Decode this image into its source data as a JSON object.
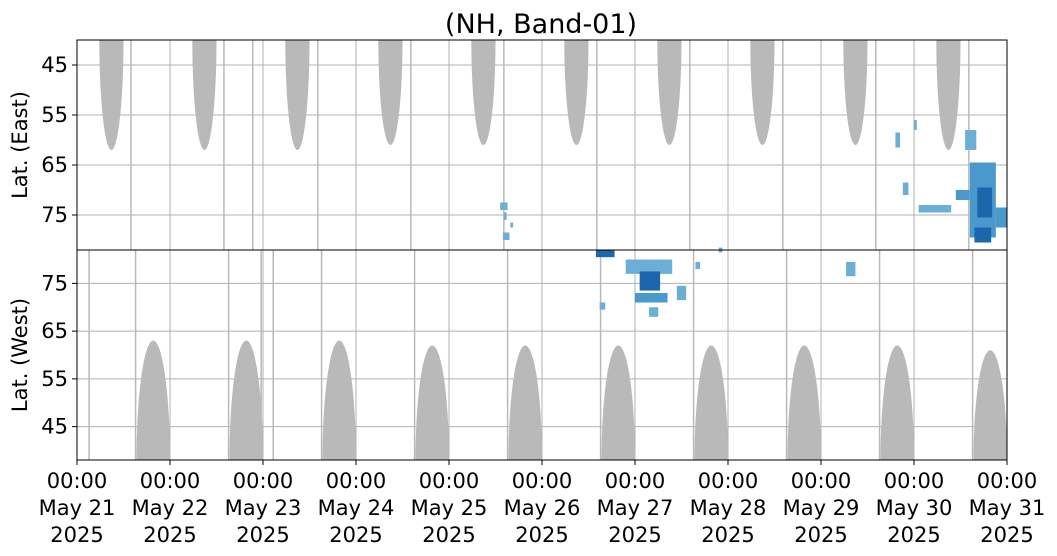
{
  "chart_data": {
    "type": "heatmap",
    "title": "(NH, Band-01)",
    "x_ticks": [
      {
        "time": "00:00",
        "date": "May 21",
        "year": "2025"
      },
      {
        "time": "00:00",
        "date": "May 22",
        "year": "2025"
      },
      {
        "time": "00:00",
        "date": "May 23",
        "year": "2025"
      },
      {
        "time": "00:00",
        "date": "May 24",
        "year": "2025"
      },
      {
        "time": "00:00",
        "date": "May 25",
        "year": "2025"
      },
      {
        "time": "00:00",
        "date": "May 26",
        "year": "2025"
      },
      {
        "time": "00:00",
        "date": "May 27",
        "year": "2025"
      },
      {
        "time": "00:00",
        "date": "May 28",
        "year": "2025"
      },
      {
        "time": "00:00",
        "date": "May 29",
        "year": "2025"
      },
      {
        "time": "00:00",
        "date": "May 30",
        "year": "2025"
      },
      {
        "time": "00:00",
        "date": "May 31",
        "year": "2025"
      }
    ],
    "xlim_days": [
      0,
      10
    ],
    "grid": true,
    "colors": {
      "no_data": "#b9b9b9",
      "light": "#6baed6",
      "medium": "#4a98cc",
      "dark": "#1c66ad",
      "grid": "#b0b0b0"
    },
    "panels": [
      {
        "id": "east",
        "ylabel": "Lat. (East)",
        "ylim": [
          40,
          82
        ],
        "yticks": [
          45,
          55,
          65,
          75
        ],
        "invert_y": true,
        "no_data_regions": [
          {
            "center_day": 0.37,
            "half_width_days": 0.13,
            "edge_lat": 62
          },
          {
            "center_day": 1.37,
            "half_width_days": 0.13,
            "edge_lat": 62
          },
          {
            "center_day": 2.37,
            "half_width_days": 0.13,
            "edge_lat": 62
          },
          {
            "center_day": 3.37,
            "half_width_days": 0.13,
            "edge_lat": 61
          },
          {
            "center_day": 4.37,
            "half_width_days": 0.13,
            "edge_lat": 61
          },
          {
            "center_day": 5.37,
            "half_width_days": 0.13,
            "edge_lat": 61
          },
          {
            "center_day": 6.37,
            "half_width_days": 0.13,
            "edge_lat": 61
          },
          {
            "center_day": 7.37,
            "half_width_days": 0.13,
            "edge_lat": 61
          },
          {
            "center_day": 8.37,
            "half_width_days": 0.13,
            "edge_lat": 61
          },
          {
            "center_day": 9.37,
            "half_width_days": 0.13,
            "edge_lat": 62
          }
        ],
        "no_data_lines_days": [
          0.58,
          1.58,
          1.89,
          2.59,
          3.59,
          4.59,
          5.59,
          6.59,
          7.59,
          8.59,
          9.59
        ],
        "detections": [
          {
            "day": 4.55,
            "lat": 72.5,
            "d_day": 0.08,
            "d_lat": 1.5,
            "level": "light"
          },
          {
            "day": 4.59,
            "lat": 74.5,
            "d_day": 0.03,
            "d_lat": 1.5,
            "level": "light"
          },
          {
            "day": 4.66,
            "lat": 76.5,
            "d_day": 0.03,
            "d_lat": 1,
            "level": "light"
          },
          {
            "day": 4.58,
            "lat": 78.5,
            "d_day": 0.07,
            "d_lat": 1.5,
            "level": "light"
          },
          {
            "day": 8.8,
            "lat": 58.5,
            "d_day": 0.05,
            "d_lat": 3,
            "level": "light"
          },
          {
            "day": 8.88,
            "lat": 68.5,
            "d_day": 0.06,
            "d_lat": 2.5,
            "level": "light"
          },
          {
            "day": 9.0,
            "lat": 56.0,
            "d_day": 0.03,
            "d_lat": 2,
            "level": "light"
          },
          {
            "day": 9.05,
            "lat": 73.0,
            "d_day": 0.35,
            "d_lat": 1.5,
            "level": "light"
          },
          {
            "day": 9.45,
            "lat": 70.0,
            "d_day": 0.15,
            "d_lat": 2,
            "level": "medium"
          },
          {
            "day": 9.55,
            "lat": 58.0,
            "d_day": 0.12,
            "d_lat": 4,
            "level": "light"
          },
          {
            "day": 9.6,
            "lat": 64.5,
            "d_day": 0.28,
            "d_lat": 15,
            "level": "medium"
          },
          {
            "day": 9.68,
            "lat": 69.5,
            "d_day": 0.16,
            "d_lat": 6,
            "level": "dark"
          },
          {
            "day": 9.65,
            "lat": 77.5,
            "d_day": 0.18,
            "d_lat": 3,
            "level": "dark"
          },
          {
            "day": 9.88,
            "lat": 73.5,
            "d_day": 0.12,
            "d_lat": 4,
            "level": "medium"
          }
        ]
      },
      {
        "id": "west",
        "ylabel": "Lat. (West)",
        "ylim": [
          38,
          82
        ],
        "yticks": [
          75,
          65,
          55,
          45
        ],
        "invert_y": false,
        "no_data_regions": [
          {
            "center_day": 0.82,
            "half_width_days": 0.18,
            "edge_lat": 63
          },
          {
            "center_day": 1.82,
            "half_width_days": 0.18,
            "edge_lat": 63
          },
          {
            "center_day": 2.82,
            "half_width_days": 0.18,
            "edge_lat": 63
          },
          {
            "center_day": 3.82,
            "half_width_days": 0.18,
            "edge_lat": 62
          },
          {
            "center_day": 4.82,
            "half_width_days": 0.18,
            "edge_lat": 62
          },
          {
            "center_day": 5.82,
            "half_width_days": 0.18,
            "edge_lat": 62
          },
          {
            "center_day": 6.82,
            "half_width_days": 0.18,
            "edge_lat": 62
          },
          {
            "center_day": 7.82,
            "half_width_days": 0.18,
            "edge_lat": 62
          },
          {
            "center_day": 8.82,
            "half_width_days": 0.18,
            "edge_lat": 62
          },
          {
            "center_day": 9.82,
            "half_width_days": 0.18,
            "edge_lat": 61
          }
        ],
        "no_data_lines_days": [
          0.13,
          0.63,
          1.63,
          1.98,
          2.11,
          2.63,
          3.63,
          4.63,
          5.63,
          6.63,
          7.63,
          8.63,
          9.63
        ],
        "detections": [
          {
            "day": 5.58,
            "lat": 80.5,
            "d_day": 0.2,
            "d_lat": 1.5,
            "level": "dark"
          },
          {
            "day": 5.62,
            "lat": 69.5,
            "d_day": 0.06,
            "d_lat": 1.5,
            "level": "light"
          },
          {
            "day": 5.9,
            "lat": 77.0,
            "d_day": 0.5,
            "d_lat": 3,
            "level": "light"
          },
          {
            "day": 6.05,
            "lat": 73.5,
            "d_day": 0.22,
            "d_lat": 4,
            "level": "dark"
          },
          {
            "day": 6.0,
            "lat": 71.0,
            "d_day": 0.35,
            "d_lat": 2,
            "level": "medium"
          },
          {
            "day": 6.15,
            "lat": 68.0,
            "d_day": 0.1,
            "d_lat": 2,
            "level": "light"
          },
          {
            "day": 6.45,
            "lat": 71.5,
            "d_day": 0.1,
            "d_lat": 3,
            "level": "light"
          },
          {
            "day": 6.65,
            "lat": 78.0,
            "d_day": 0.05,
            "d_lat": 1.5,
            "level": "light"
          },
          {
            "day": 6.9,
            "lat": 81.5,
            "d_day": 0.04,
            "d_lat": 1,
            "level": "light"
          },
          {
            "day": 8.27,
            "lat": 76.5,
            "d_day": 0.1,
            "d_lat": 3,
            "level": "light"
          }
        ]
      }
    ]
  }
}
